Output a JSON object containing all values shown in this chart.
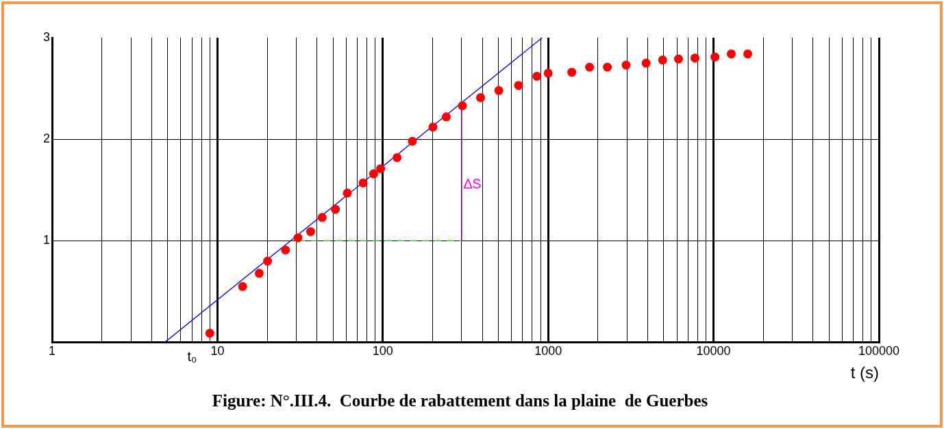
{
  "chart_data": {
    "type": "scatter",
    "title": "Figure: N°.III.4.  Courbe de rabattement dans la plaine  de Guerbes",
    "xlabel": "t (s)",
    "log": "x",
    "grid": true,
    "legend": false,
    "marker": "circle",
    "xlim": [
      1,
      100000
    ],
    "ylim": [
      0,
      3
    ],
    "xticks": [
      1,
      {
        "value": 2,
        "label": null
      },
      {
        "value": 3,
        "label": null
      },
      {
        "value": 4,
        "label": null
      },
      {
        "value": 5,
        "label": null
      },
      {
        "value": 6,
        "label": null
      },
      {
        "value": 7,
        "label": null
      },
      {
        "value": 8,
        "label": null
      },
      {
        "value": 9,
        "label": null
      },
      10,
      {
        "value": 20,
        "label": null
      },
      {
        "value": 30,
        "label": null
      },
      {
        "value": 40,
        "label": null
      },
      {
        "value": 50,
        "label": null
      },
      {
        "value": 60,
        "label": null
      },
      {
        "value": 70,
        "label": null
      },
      {
        "value": 80,
        "label": null
      },
      {
        "value": 90,
        "label": null
      },
      100,
      {
        "value": 200,
        "label": null
      },
      {
        "value": 300,
        "label": null
      },
      {
        "value": 400,
        "label": null
      },
      {
        "value": 500,
        "label": null
      },
      {
        "value": 600,
        "label": null
      },
      {
        "value": 700,
        "label": null
      },
      {
        "value": 800,
        "label": null
      },
      {
        "value": 900,
        "label": null
      },
      1000,
      {
        "value": 2000,
        "label": null
      },
      {
        "value": 3000,
        "label": null
      },
      {
        "value": 4000,
        "label": null
      },
      {
        "value": 5000,
        "label": null
      },
      {
        "value": 6000,
        "label": null
      },
      {
        "value": 7000,
        "label": null
      },
      {
        "value": 8000,
        "label": null
      },
      {
        "value": 9000,
        "label": null
      },
      10000,
      {
        "value": 20000,
        "label": null
      },
      {
        "value": 30000,
        "label": null
      },
      {
        "value": 40000,
        "label": null
      },
      {
        "value": 50000,
        "label": null
      },
      {
        "value": 60000,
        "label": null
      },
      {
        "value": 70000,
        "label": null
      },
      {
        "value": 80000,
        "label": null
      },
      {
        "value": 90000,
        "label": null
      },
      100000
    ],
    "yticks": [
      1,
      2,
      3
    ],
    "series": [
      {
        "type": "scatter",
        "color": "#ff0000",
        "x": [
          9,
          14.2,
          17.9,
          20.1,
          25.8,
          30.7,
          36.6,
          43,
          51.7,
          61,
          76,
          88,
          97,
          122,
          151,
          201,
          242,
          303,
          390,
          503,
          662,
          855,
          1000,
          1390,
          1780,
          2280,
          2960,
          3910,
          4920,
          6140,
          7720,
          10200,
          12800,
          16100
        ],
        "values": [
          0.09,
          0.55,
          0.68,
          0.8,
          0.91,
          1.03,
          1.09,
          1.23,
          1.31,
          1.47,
          1.57,
          1.66,
          1.71,
          1.82,
          1.98,
          2.12,
          2.22,
          2.33,
          2.41,
          2.48,
          2.53,
          2.62,
          2.65,
          2.66,
          2.71,
          2.71,
          2.73,
          2.75,
          2.78,
          2.79,
          2.8,
          2.81,
          2.84,
          2.84
        ]
      },
      {
        "type": "line",
        "color": "#0000ff",
        "marker": "none",
        "line_style": "solid",
        "x": [
          4.8,
          920
        ],
        "values": [
          0,
          3
        ]
      },
      {
        "type": "line",
        "color": "#00cc00",
        "marker": "none",
        "line_style": "dashed",
        "x": [
          31,
          300
        ],
        "values": [
          1,
          1
        ]
      },
      {
        "type": "line",
        "color": "#a000a0",
        "marker": "none",
        "line_style": "solid",
        "x": [
          300,
          300
        ],
        "values": [
          1,
          2.33
        ]
      }
    ],
    "annotations": [
      {
        "text": "∆S",
        "x": 300,
        "y": 1.55
      },
      {
        "text": "t₀",
        "x": 4.8,
        "y": 0
      }
    ]
  }
}
